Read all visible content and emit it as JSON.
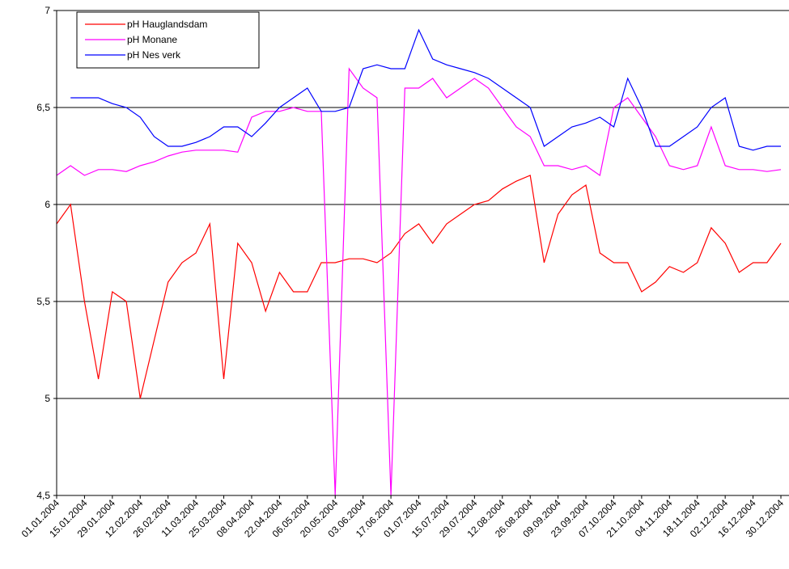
{
  "chart_data": {
    "type": "line",
    "x": [
      "01.01.2004",
      "08.01.2004",
      "15.01.2004",
      "22.01.2004",
      "29.01.2004",
      "05.02.2004",
      "12.02.2004",
      "19.02.2004",
      "26.02.2004",
      "04.03.2004",
      "11.03.2004",
      "18.03.2004",
      "25.03.2004",
      "01.04.2004",
      "08.04.2004",
      "15.04.2004",
      "22.04.2004",
      "29.04.2004",
      "06.05.2004",
      "13.05.2004",
      "20.05.2004",
      "27.05.2004",
      "03.06.2004",
      "10.06.2004",
      "17.06.2004",
      "24.06.2004",
      "01.07.2004",
      "08.07.2004",
      "15.07.2004",
      "22.07.2004",
      "29.07.2004",
      "05.08.2004",
      "12.08.2004",
      "19.08.2004",
      "26.08.2004",
      "02.09.2004",
      "09.09.2004",
      "16.09.2004",
      "23.09.2004",
      "30.09.2004",
      "07.10.2004",
      "14.10.2004",
      "21.10.2004",
      "28.10.2004",
      "04.11.2004",
      "11.11.2004",
      "18.11.2004",
      "25.11.2004",
      "02.12.2004",
      "09.12.2004",
      "16.12.2004",
      "23.12.2004",
      "30.12.2004"
    ],
    "series": [
      {
        "name": "pH Hauglandsdam",
        "color": "#ff0000",
        "values": [
          5.9,
          6.0,
          5.5,
          5.1,
          5.55,
          5.5,
          5.0,
          5.3,
          5.6,
          5.7,
          5.75,
          5.9,
          5.1,
          5.8,
          5.7,
          5.45,
          5.65,
          5.55,
          5.55,
          5.7,
          5.7,
          5.72,
          5.72,
          5.7,
          5.75,
          5.85,
          5.9,
          5.8,
          5.9,
          5.95,
          6.0,
          6.02,
          6.08,
          6.12,
          6.15,
          5.7,
          5.95,
          6.05,
          6.1,
          5.75,
          5.7,
          5.7,
          5.55,
          5.6,
          5.68,
          5.65,
          5.7,
          5.88,
          5.8,
          5.65,
          5.7,
          5.7,
          5.8
        ]
      },
      {
        "name": "pH Monane",
        "color": "#ff00ff",
        "values": [
          6.15,
          6.2,
          6.15,
          6.18,
          6.18,
          6.17,
          6.2,
          6.22,
          6.25,
          6.27,
          6.28,
          6.28,
          6.28,
          6.27,
          6.45,
          6.48,
          6.48,
          6.5,
          6.48,
          6.48,
          4.5,
          6.7,
          6.6,
          6.55,
          4.5,
          6.6,
          6.6,
          6.65,
          6.55,
          6.6,
          6.65,
          6.6,
          6.5,
          6.4,
          6.35,
          6.2,
          6.2,
          6.18,
          6.2,
          6.15,
          6.5,
          6.55,
          6.45,
          6.35,
          6.2,
          6.18,
          6.2,
          6.4,
          6.2,
          6.18,
          6.18,
          6.17,
          6.18
        ]
      },
      {
        "name": "pH Nes verk",
        "color": "#0000ff",
        "values": [
          null,
          6.55,
          6.55,
          6.55,
          6.52,
          6.5,
          6.45,
          6.35,
          6.3,
          6.3,
          6.32,
          6.35,
          6.4,
          6.4,
          6.35,
          6.42,
          6.5,
          6.55,
          6.6,
          6.48,
          6.48,
          6.5,
          6.7,
          6.72,
          6.7,
          6.7,
          6.9,
          6.75,
          6.72,
          6.7,
          6.68,
          6.65,
          6.6,
          6.55,
          6.5,
          6.3,
          6.35,
          6.4,
          6.42,
          6.45,
          6.4,
          6.65,
          6.5,
          6.3,
          6.3,
          6.35,
          6.4,
          6.5,
          6.55,
          6.3,
          6.28,
          6.3,
          6.3
        ]
      }
    ],
    "xlim": [
      "01.01.2004",
      "30.12.2004"
    ],
    "xticks": [
      "01.01.2004",
      "15.01.2004",
      "29.01.2004",
      "12.02.2004",
      "26.02.2004",
      "11.03.2004",
      "25.03.2004",
      "08.04.2004",
      "22.04.2004",
      "06.05.2004",
      "20.05.2004",
      "03.06.2004",
      "17.06.2004",
      "01.07.2004",
      "15.07.2004",
      "29.07.2004",
      "12.08.2004",
      "26.08.2004",
      "09.09.2004",
      "23.09.2004",
      "07.10.2004",
      "21.10.2004",
      "04.11.2004",
      "18.11.2004",
      "02.12.2004",
      "16.12.2004",
      "30.12.2004"
    ],
    "ylim": [
      4.5,
      7
    ],
    "yticks": [
      {
        "value": 4.5,
        "label": "4,5"
      },
      5,
      {
        "value": 5.5,
        "label": "5,5"
      },
      6,
      {
        "value": 6.5,
        "label": "6,5"
      },
      7
    ],
    "grid": true,
    "legend": "upper left"
  }
}
